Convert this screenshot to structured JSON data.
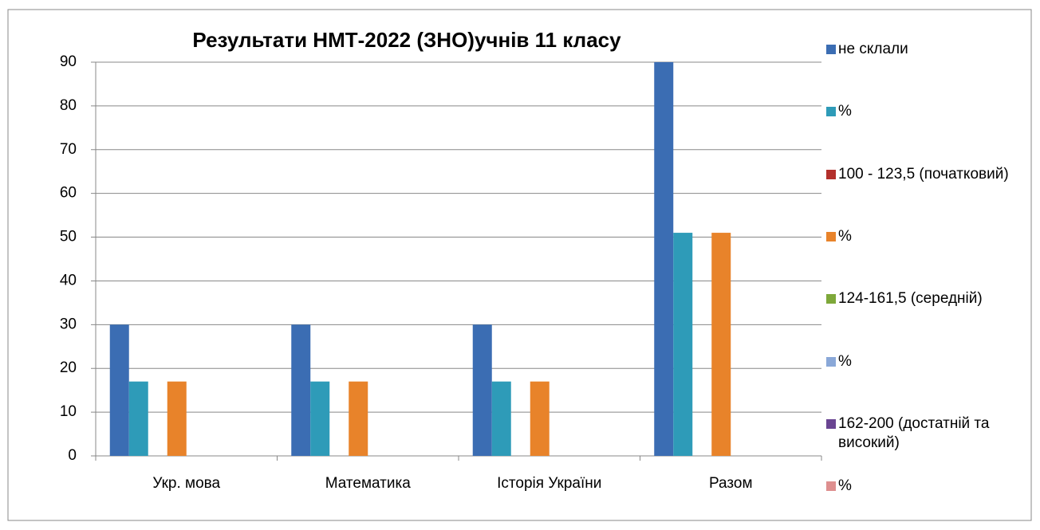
{
  "chart_data": {
    "type": "bar",
    "title": "Результати  НМТ-2022 (ЗНО)учнів 11 класу",
    "categories": [
      "Укр. мова",
      "Математика",
      "Історія України",
      "Разом"
    ],
    "series": [
      {
        "name": "не склали",
        "color": "#3b6db3",
        "values": [
          30,
          30,
          30,
          90
        ]
      },
      {
        "name": "%",
        "color": "#2e9bb8",
        "values": [
          17,
          17,
          17,
          51
        ]
      },
      {
        "name": "100 - 123,5 (початковий)",
        "color": "#b3302c",
        "values": [
          0,
          0,
          0,
          0
        ]
      },
      {
        "name": "%",
        "color": "#e8832a",
        "values": [
          17,
          17,
          17,
          51
        ]
      },
      {
        "name": "124-161,5 (середній)",
        "color": "#7ea83a",
        "values": [
          0,
          0,
          0,
          0
        ]
      },
      {
        "name": "%",
        "color": "#8aa8d8",
        "values": [
          0,
          0,
          0,
          0
        ]
      },
      {
        "name": "162-200 (достатній та високий)",
        "color": "#6a4592",
        "values": [
          0,
          0,
          0,
          0
        ]
      },
      {
        "name": "%",
        "color": "#de8f8f",
        "values": [
          0,
          0,
          0,
          0
        ]
      }
    ],
    "ylim": [
      0,
      90
    ],
    "yticks": [
      0,
      10,
      20,
      30,
      40,
      50,
      60,
      70,
      80,
      90
    ],
    "grid": true,
    "legend": "right"
  }
}
